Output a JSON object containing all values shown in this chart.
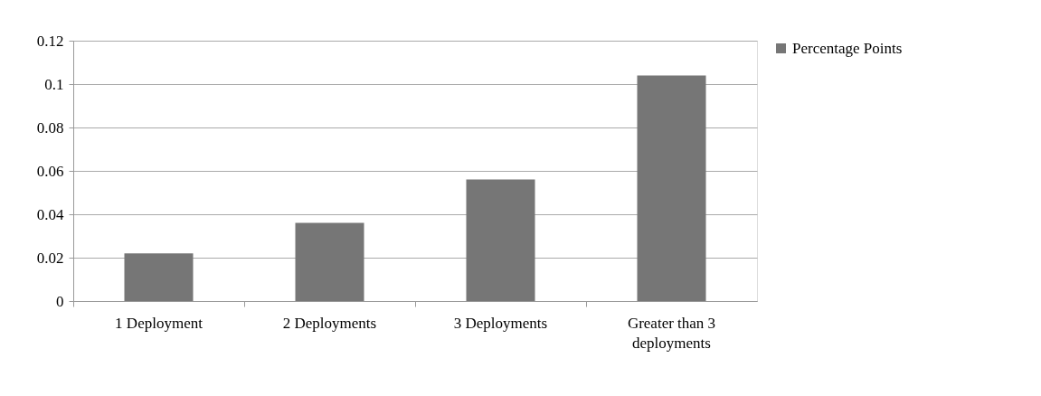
{
  "chart_data": {
    "type": "bar",
    "categories": [
      "1 Deployment",
      "2 Deployments",
      "3 Deployments",
      "Greater than 3 deployments"
    ],
    "series": [
      {
        "name": "Percentage Points",
        "color": "#767676",
        "values": [
          0.022,
          0.036,
          0.056,
          0.104
        ]
      }
    ],
    "ylim": [
      0,
      0.12
    ],
    "yticks": [
      0,
      0.02,
      0.04,
      0.06,
      0.08,
      0.1,
      0.12
    ],
    "grid": "y",
    "legend": "right"
  }
}
